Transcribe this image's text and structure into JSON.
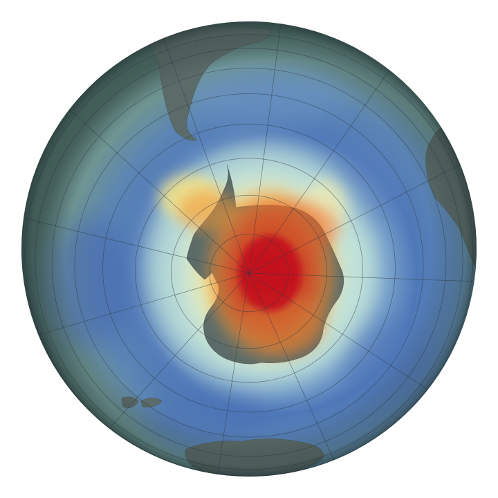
{
  "map": {
    "projection": "orthographic-south-polar",
    "center": "south-pole",
    "background_color": "#ffffff",
    "layers": [
      "ozone-concentration",
      "landmasses",
      "graticule"
    ],
    "graticule": {
      "parallel_step_deg": 10,
      "meridian_step_deg": 30,
      "color": "#2e3a44"
    },
    "colors": {
      "hole_core": "#c80f14",
      "hole_red": "#e8361a",
      "hole_orange": "#f08a2c",
      "hole_yellow": "#f6df7c",
      "rim_pale": "#f2f4cc",
      "mid_cyan": "#9fd1d6",
      "low_blue": "#4e78b8",
      "outer_teal": "#6f9292",
      "edge_dark": "#2e4446",
      "land": "#5c6c6a"
    },
    "landmasses": [
      "antarctica-icon",
      "antarctic-peninsula-icon",
      "south-america-icon",
      "africa-icon",
      "australia-icon",
      "new-zealand-icon"
    ]
  }
}
